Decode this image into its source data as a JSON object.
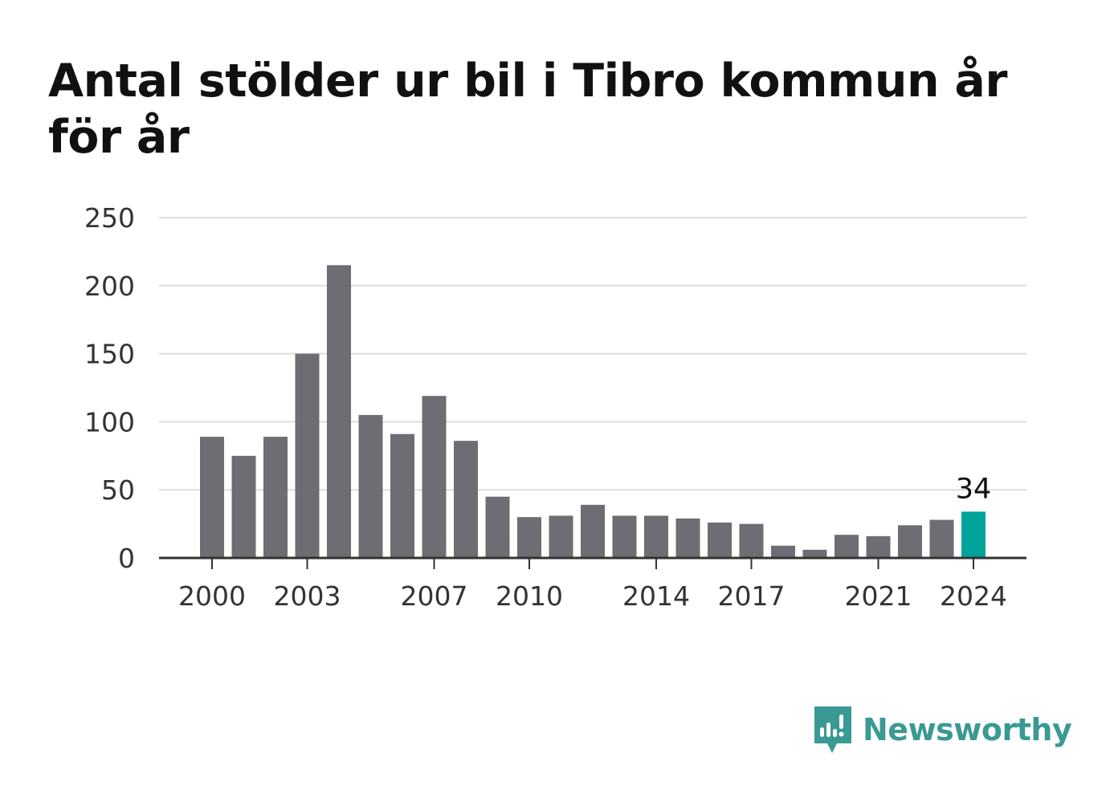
{
  "title": "Antal stölder ur bil i Tibro kommun år för år",
  "brand": {
    "name": "Newsworthy",
    "color": "#3a9a93"
  },
  "colors": {
    "bar": "#6e6d73",
    "highlight": "#00a39a",
    "grid": "#dddddd",
    "axis": "#333333"
  },
  "chart_data": {
    "type": "bar",
    "title": "Antal stölder ur bil i Tibro kommun år för år",
    "xlabel": "",
    "ylabel": "",
    "ylim": [
      0,
      250
    ],
    "yticks": [
      0,
      50,
      100,
      150,
      200,
      250
    ],
    "categories": [
      "2000",
      "2001",
      "2002",
      "2003",
      "2004",
      "2005",
      "2006",
      "2007",
      "2008",
      "2009",
      "2010",
      "2011",
      "2012",
      "2013",
      "2014",
      "2015",
      "2016",
      "2017",
      "2018",
      "2019",
      "2020",
      "2021",
      "2022",
      "2023",
      "2024"
    ],
    "xtick_labels": [
      "2000",
      "2003",
      "2007",
      "2010",
      "2014",
      "2017",
      "2021",
      "2024"
    ],
    "values": [
      89,
      75,
      89,
      150,
      215,
      105,
      91,
      119,
      86,
      45,
      30,
      31,
      39,
      31,
      31,
      29,
      26,
      25,
      9,
      6,
      17,
      16,
      24,
      28,
      34
    ],
    "highlight": {
      "category": "2024",
      "label": "34"
    },
    "grid": true,
    "legend": "none"
  }
}
